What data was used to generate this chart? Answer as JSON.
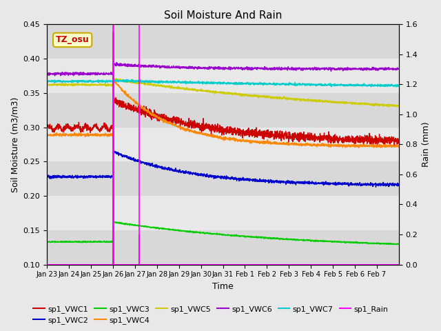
{
  "title": "Soil Moisture And Rain",
  "ylabel_left": "Soil Moisture (m3/m3)",
  "ylabel_right": "Rain (mm)",
  "xlabel": "Time",
  "annotation_text": "TZ_osu",
  "annotation_color": "#cc0000",
  "annotation_bg": "#ffffcc",
  "annotation_border": "#ccaa00",
  "ylim_left": [
    0.1,
    0.45
  ],
  "ylim_right": [
    0.0,
    1.6
  ],
  "xtick_labels": [
    "Jan 23",
    "Jan 24",
    "Jan 25",
    "Jan 26",
    "Jan 27",
    "Jan 28",
    "Jan 29",
    "Jan 30",
    "Jan 31",
    "Feb 1",
    "Feb 2",
    "Feb 3",
    "Feb 4",
    "Feb 5",
    "Feb 6",
    "Feb 7"
  ],
  "colors": {
    "VWC1": "#cc0000",
    "VWC2": "#0000cc",
    "VWC3": "#00cc00",
    "VWC4": "#ff8800",
    "VWC5": "#cccc00",
    "VWC6": "#9900cc",
    "VWC7": "#00cccc",
    "Rain": "#ff00ff"
  },
  "band_colors": [
    "#d8d8d8",
    "#e8e8e8"
  ],
  "bg_color": "#e8e8e8"
}
